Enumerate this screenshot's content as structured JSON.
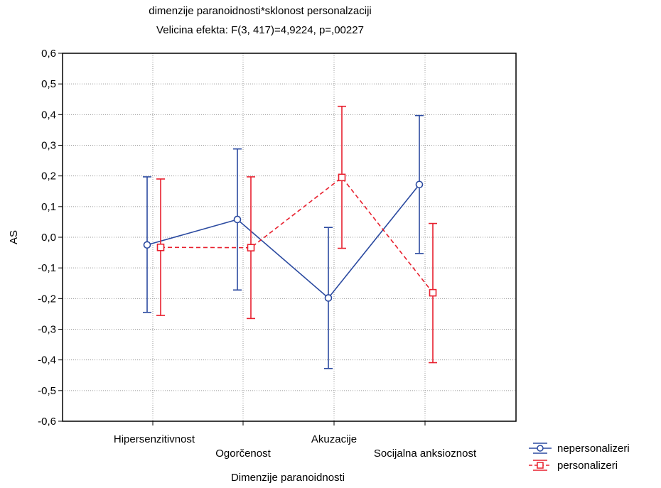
{
  "chart_data": {
    "type": "line",
    "title": "dimenzije paranoidnosti*sklonost personalzaciji",
    "subtitle": "Velicina efekta: F(3, 417)=4,9224, p=,00227",
    "xlabel": "Dimenzije paranoidnosti",
    "ylabel": "AS",
    "ylim": [
      -0.6,
      0.6
    ],
    "yticks": [
      "0,6",
      "0,5",
      "0,4",
      "0,3",
      "0,2",
      "0,1",
      "0,0",
      "-0,1",
      "-0,2",
      "-0,3",
      "-0,4",
      "-0,5",
      "-0,6"
    ],
    "categories": [
      "Hipersenzitivnost",
      "Ogorčenost",
      "Akuzacije",
      "Socijalna anksioznost"
    ],
    "grid": true,
    "legend_position": "bottom-right",
    "series": [
      {
        "name": "nepersonalizeri",
        "color": "#2b4aa0",
        "marker": "circle",
        "line": "solid",
        "values": [
          -0.025,
          0.058,
          -0.198,
          0.172
        ],
        "ci_low": [
          -0.245,
          -0.172,
          -0.428,
          -0.053
        ],
        "ci_high": [
          0.197,
          0.288,
          0.032,
          0.397
        ]
      },
      {
        "name": "personalizeri",
        "color": "#e8202e",
        "marker": "square",
        "line": "dashed",
        "values": [
          -0.033,
          -0.034,
          0.195,
          -0.181
        ],
        "ci_low": [
          -0.255,
          -0.265,
          -0.036,
          -0.409
        ],
        "ci_high": [
          0.19,
          0.197,
          0.427,
          0.045
        ]
      }
    ]
  }
}
